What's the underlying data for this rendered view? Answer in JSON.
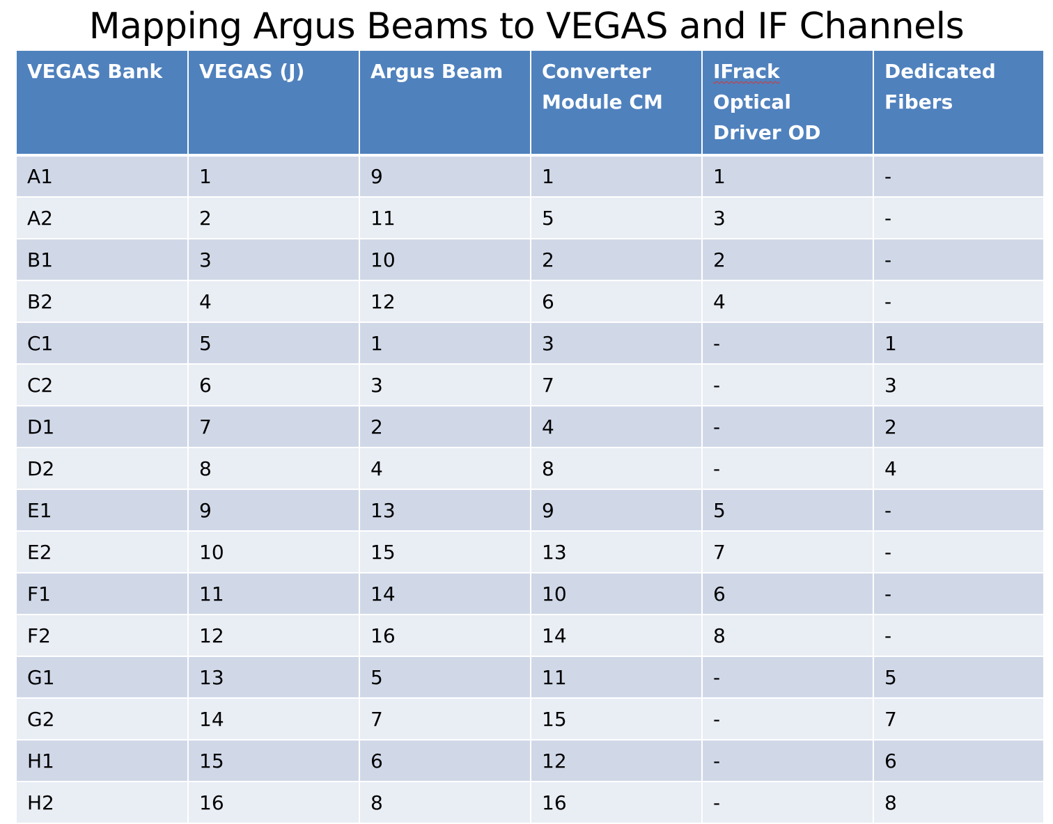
{
  "title": "Mapping Argus Beams to VEGAS and IF Channels",
  "table": {
    "headers": [
      {
        "label": "VEGAS Bank"
      },
      {
        "label": "VEGAS (J)"
      },
      {
        "label": "Argus Beam"
      },
      {
        "label": "Converter Module CM"
      },
      {
        "label_word1": "IFrack",
        "label_rest": " Optical Driver OD"
      },
      {
        "label": "Dedicated Fibers"
      }
    ],
    "rows": [
      [
        "A1",
        "1",
        "9",
        "1",
        "1",
        "-"
      ],
      [
        "A2",
        "2",
        "11",
        "5",
        "3",
        "-"
      ],
      [
        "B1",
        "3",
        "10",
        "2",
        "2",
        "-"
      ],
      [
        "B2",
        "4",
        "12",
        "6",
        "4",
        "-"
      ],
      [
        "C1",
        "5",
        "1",
        "3",
        "-",
        "1"
      ],
      [
        "C2",
        "6",
        "3",
        "7",
        "-",
        "3"
      ],
      [
        "D1",
        "7",
        "2",
        "4",
        "-",
        "2"
      ],
      [
        "D2",
        "8",
        "4",
        "8",
        "-",
        "4"
      ],
      [
        "E1",
        "9",
        "13",
        "9",
        "5",
        "-"
      ],
      [
        "E2",
        "10",
        "15",
        "13",
        "7",
        "-"
      ],
      [
        "F1",
        "11",
        "14",
        "10",
        "6",
        "-"
      ],
      [
        "F2",
        "12",
        "16",
        "14",
        "8",
        "-"
      ],
      [
        "G1",
        "13",
        "5",
        "11",
        "-",
        "5"
      ],
      [
        "G2",
        "14",
        "7",
        "15",
        "-",
        "7"
      ],
      [
        "H1",
        "15",
        "6",
        "12",
        "-",
        "6"
      ],
      [
        "H2",
        "16",
        "8",
        "16",
        "-",
        "8"
      ]
    ]
  },
  "colors": {
    "header_bg": "#4f81bd",
    "row_band_dark": "#d0d8e8",
    "row_band_light": "#e9edf4",
    "spellcheck_underline": "#e0322a"
  }
}
